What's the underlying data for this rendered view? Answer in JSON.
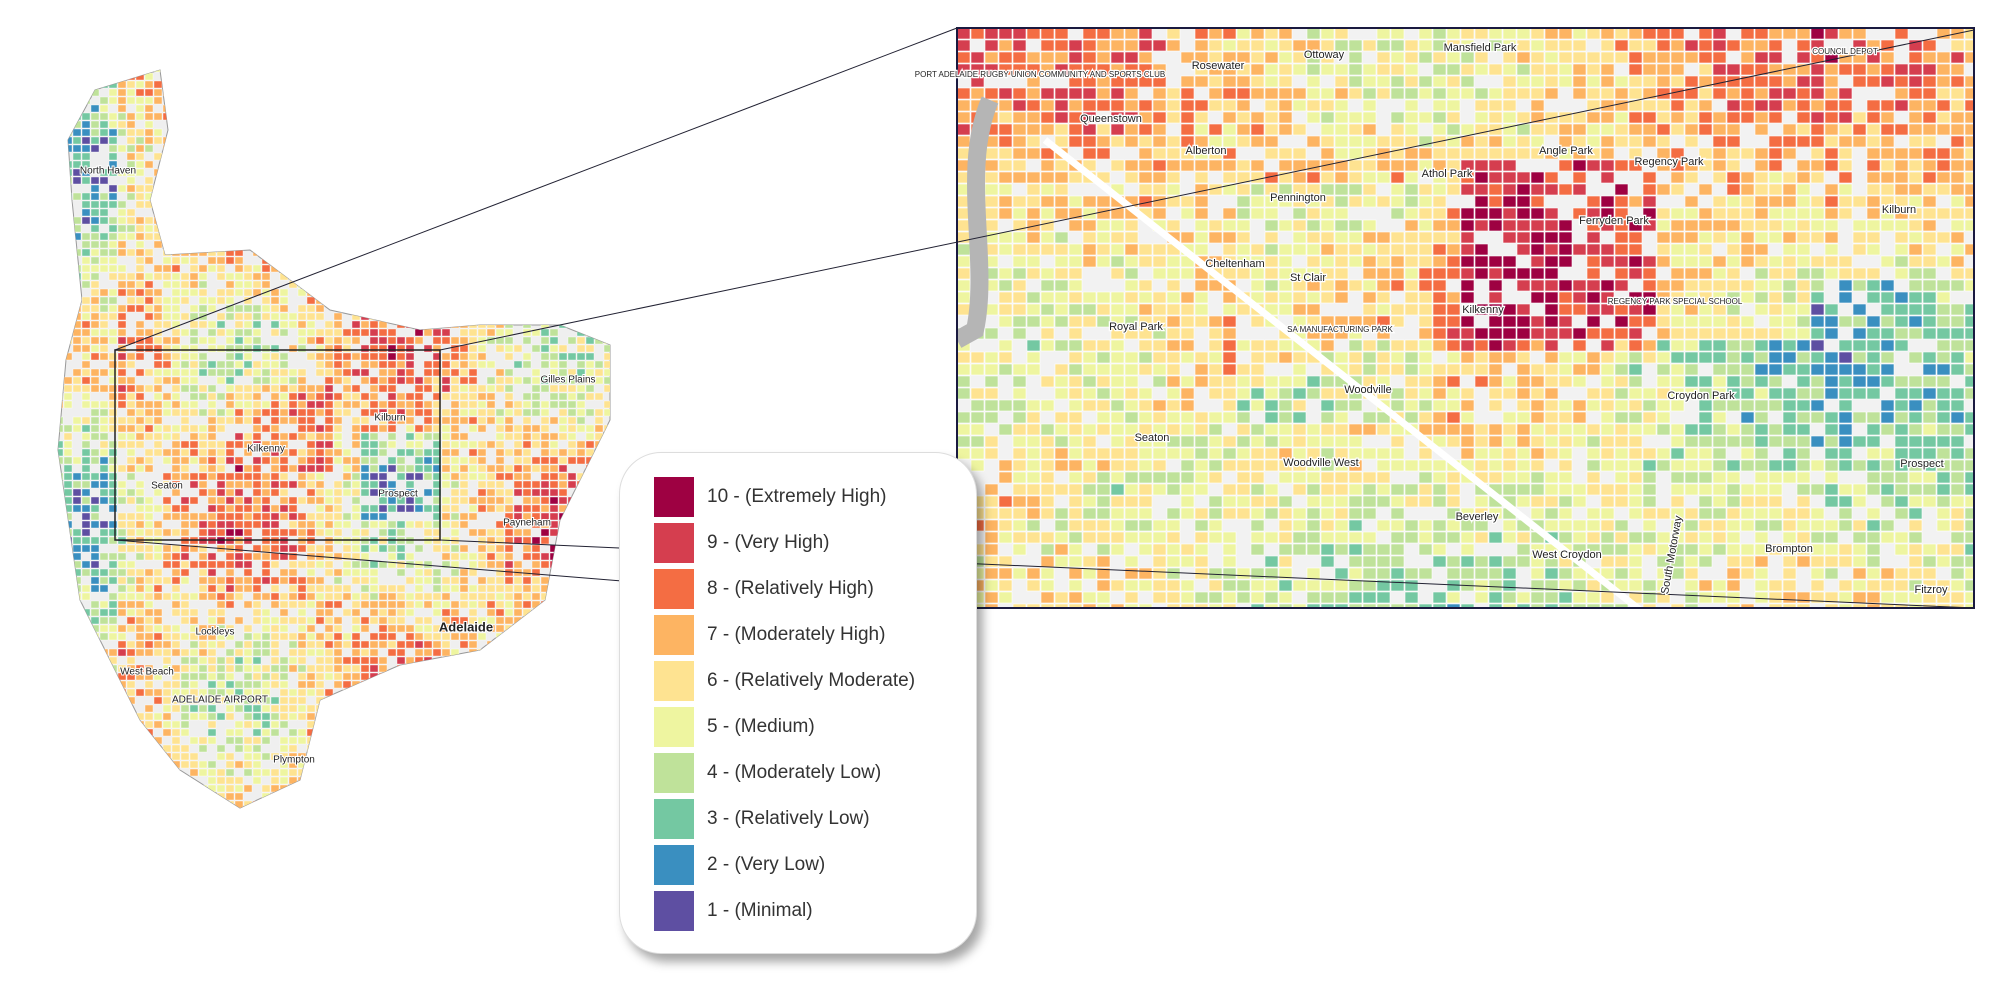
{
  "overview_labels": [
    "North Haven",
    "Gilles Plains",
    "Kilburn",
    "Seaton",
    "Kilkenny",
    "Prospect",
    "Payneham",
    "Adelaide",
    "Lockleys",
    "West Beach",
    "ADELAIDE AIRPORT",
    "Plympton"
  ],
  "inset_labels": [
    "Queenstown",
    "Rosewater",
    "Ottoway",
    "Mansfield Park",
    "Alberton",
    "Pennington",
    "Athol Park",
    "Angle Park",
    "Regency Park",
    "Ferryden Park",
    "Kilburn",
    "Cheltenham",
    "St Clair",
    "Kilkenny",
    "Royal Park",
    "Woodville",
    "Croydon Park",
    "Seaton",
    "Woodville West",
    "Prospect",
    "Beverley",
    "West Croydon",
    "Brompton",
    "Fitzroy",
    "South Motorway",
    "PORT ADELAIDE RUGBY UNION COMMUNITY AND SPORTS CLUB",
    "COUNCIL DEPOT",
    "REGENCY PARK SPECIAL SCHOOL",
    "SA MANUFACTURING PARK"
  ],
  "legend": {
    "items": [
      {
        "label": "10 - (Extremely High)",
        "color": "#9e0142"
      },
      {
        "label": "9 - (Very High)",
        "color": "#d53e4f"
      },
      {
        "label": "8 - (Relatively High)",
        "color": "#f46d43"
      },
      {
        "label": "7 - (Moderately High)",
        "color": "#fdb462"
      },
      {
        "label": "6 - (Relatively Moderate)",
        "color": "#fee391"
      },
      {
        "label": "5 - (Medium)",
        "color": "#eef5a0"
      },
      {
        "label": "4 - (Moderately Low)",
        "color": "#bfe29a"
      },
      {
        "label": "3 - (Relatively Low)",
        "color": "#74c8a2"
      },
      {
        "label": "2 - (Very Low)",
        "color": "#3a8fc0"
      },
      {
        "label": "1 - (Minimal)",
        "color": "#5e4fa2"
      }
    ]
  }
}
